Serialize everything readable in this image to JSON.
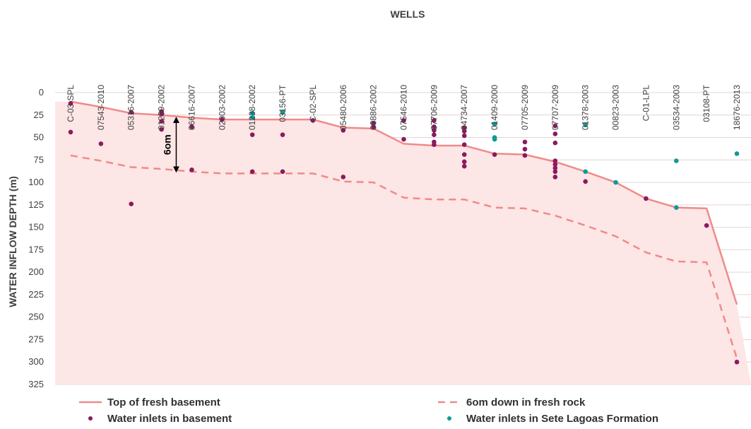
{
  "chart_data": {
    "type": "area",
    "title": "",
    "xlabel": "WELLS",
    "ylabel": "WATER INFLOW DEPTH (m)",
    "ylim": [
      0,
      325
    ],
    "y_inverted": true,
    "yticks": [
      0,
      25,
      50,
      75,
      100,
      125,
      150,
      175,
      200,
      225,
      250,
      275,
      300,
      325
    ],
    "grid": "horizontal",
    "legend_placement": "bottom",
    "categories": [
      "C-03-SPL",
      "07543-2010",
      "05316-2007",
      "01239-2002",
      "06616-2007",
      "02003-2002",
      "01238-2002",
      "03156-PT",
      "C-02-SPL",
      "05480-2006",
      "00886-2002",
      "07546-2010",
      "07706-2009",
      "04734-2007",
      "01409-2000",
      "07705-2009",
      "07707-2009",
      "01378-2003",
      "00823-2003",
      "C-01-LPL",
      "03534-2003",
      "03108-PT",
      "18676-2013"
    ],
    "series": [
      {
        "name": "Top of fresh basement",
        "kind": "line",
        "style": "solid",
        "color": "#f08a8a",
        "values": [
          10,
          16,
          23,
          25,
          28,
          30,
          30,
          30,
          30,
          39,
          40,
          57,
          59,
          59,
          68,
          69,
          77,
          88,
          100,
          118,
          128,
          129,
          236
        ]
      },
      {
        "name": "6om down in fresh rock",
        "kind": "line",
        "style": "dashed",
        "color": "#f08a8a",
        "values": [
          70,
          76,
          83,
          85,
          88,
          90,
          90,
          90,
          90,
          99,
          100,
          117,
          119,
          119,
          128,
          129,
          137,
          148,
          160,
          178,
          188,
          189,
          296
        ]
      },
      {
        "name": "Water inlets in basement",
        "kind": "scatter",
        "color": "#8b1a5e",
        "points": [
          [
            "C-03-SPL",
            12
          ],
          [
            "C-03-SPL",
            44
          ],
          [
            "07543-2010",
            57
          ],
          [
            "05316-2007",
            22
          ],
          [
            "05316-2007",
            124
          ],
          [
            "01239-2002",
            21
          ],
          [
            "01239-2002",
            24
          ],
          [
            "01239-2002",
            32
          ],
          [
            "01239-2002",
            41
          ],
          [
            "06616-2007",
            38
          ],
          [
            "06616-2007",
            86
          ],
          [
            "02003-2002",
            30
          ],
          [
            "01238-2002",
            47
          ],
          [
            "01238-2002",
            88
          ],
          [
            "03156-PT",
            47
          ],
          [
            "03156-PT",
            88
          ],
          [
            "C-02-SPL",
            31
          ],
          [
            "05480-2006",
            42
          ],
          [
            "05480-2006",
            94
          ],
          [
            "00886-2002",
            34
          ],
          [
            "00886-2002",
            38
          ],
          [
            "07546-2010",
            31
          ],
          [
            "07546-2010",
            52
          ],
          [
            "07706-2009",
            31
          ],
          [
            "07706-2009",
            38
          ],
          [
            "07706-2009",
            42
          ],
          [
            "07706-2009",
            47
          ],
          [
            "07706-2009",
            55
          ],
          [
            "07706-2009",
            58
          ],
          [
            "04734-2007",
            39
          ],
          [
            "04734-2007",
            43
          ],
          [
            "04734-2007",
            48
          ],
          [
            "04734-2007",
            58
          ],
          [
            "04734-2007",
            69
          ],
          [
            "04734-2007",
            77
          ],
          [
            "04734-2007",
            82
          ],
          [
            "01409-2000",
            69
          ],
          [
            "07705-2009",
            55
          ],
          [
            "07705-2009",
            63
          ],
          [
            "07705-2009",
            70
          ],
          [
            "07707-2009",
            37
          ],
          [
            "07707-2009",
            46
          ],
          [
            "07707-2009",
            56
          ],
          [
            "07707-2009",
            76
          ],
          [
            "07707-2009",
            80
          ],
          [
            "07707-2009",
            84
          ],
          [
            "07707-2009",
            88
          ],
          [
            "07707-2009",
            94
          ],
          [
            "01378-2003",
            99
          ],
          [
            "C-01-LPL",
            118
          ],
          [
            "03108-PT",
            148
          ],
          [
            "18676-2013",
            300
          ]
        ]
      },
      {
        "name": "Water inlets in Sete Lagoas Formation",
        "kind": "scatter",
        "color": "#0e9a9a",
        "points": [
          [
            "01238-2002",
            23
          ],
          [
            "01238-2002",
            28
          ],
          [
            "03156-PT",
            22
          ],
          [
            "01409-2000",
            35
          ],
          [
            "01409-2000",
            50
          ],
          [
            "01409-2000",
            52
          ],
          [
            "01378-2003",
            36
          ],
          [
            "01378-2003",
            88
          ],
          [
            "00823-2003",
            100
          ],
          [
            "03534-2003",
            76
          ],
          [
            "03534-2003",
            128
          ],
          [
            "18676-2013",
            68
          ]
        ]
      }
    ],
    "annotations": [
      {
        "text": "6om",
        "category": "06616-2007",
        "from": 28,
        "to": 88
      }
    ]
  }
}
